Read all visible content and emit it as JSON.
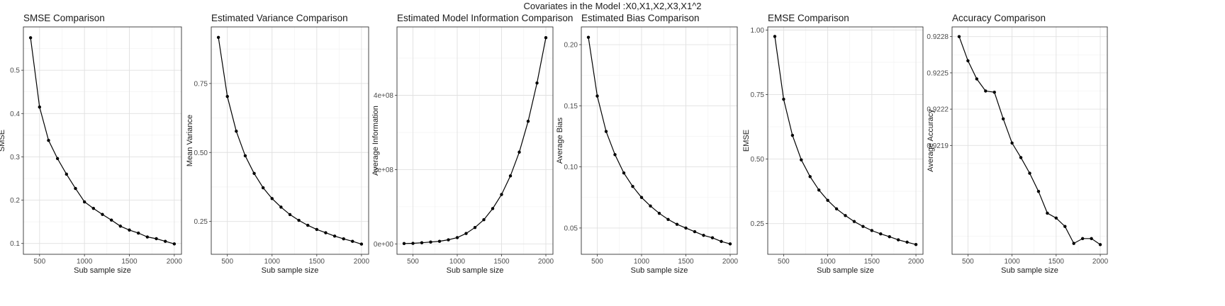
{
  "figure": {
    "title": "Covariates in the Model :X0,X1,X2,X3,X1^2"
  },
  "chart_data": [
    {
      "type": "line",
      "title": "SMSE Comparison",
      "xlabel": "Sub sample size",
      "ylabel": "SMSE",
      "x": [
        400,
        500,
        600,
        700,
        800,
        900,
        1000,
        1100,
        1200,
        1300,
        1400,
        1500,
        1600,
        1700,
        1800,
        1900,
        2000
      ],
      "y": [
        0.575,
        0.415,
        0.338,
        0.296,
        0.26,
        0.227,
        0.196,
        0.181,
        0.167,
        0.154,
        0.14,
        0.131,
        0.124,
        0.115,
        0.111,
        0.105,
        0.099
      ],
      "xticks": [
        500,
        1000,
        1500,
        2000
      ],
      "xtick_labels": [
        "500",
        "1000",
        "1500",
        "2000"
      ],
      "yticks": [
        0.1,
        0.2,
        0.3,
        0.4,
        0.5
      ],
      "ytick_labels": [
        "0.1",
        "0.2",
        "0.3",
        "0.4",
        "0.5"
      ],
      "xlim": [
        320,
        2080
      ],
      "ylim": [
        0.075,
        0.6
      ],
      "grid": true
    },
    {
      "type": "line",
      "title": "Estimated Variance Comparison",
      "xlabel": "Sub sample size",
      "ylabel": "Mean Variance",
      "x": [
        400,
        500,
        600,
        700,
        800,
        900,
        1000,
        1100,
        1200,
        1300,
        1400,
        1500,
        1600,
        1700,
        1800,
        1900,
        2000
      ],
      "y": [
        0.917,
        0.703,
        0.577,
        0.488,
        0.424,
        0.372,
        0.333,
        0.302,
        0.275,
        0.254,
        0.236,
        0.221,
        0.209,
        0.197,
        0.187,
        0.178,
        0.168
      ],
      "xticks": [
        500,
        1000,
        1500,
        2000
      ],
      "xtick_labels": [
        "500",
        "1000",
        "1500",
        "2000"
      ],
      "yticks": [
        0.25,
        0.5,
        0.75
      ],
      "ytick_labels": [
        "0.25",
        "0.50",
        "0.75"
      ],
      "xlim": [
        320,
        2080
      ],
      "ylim": [
        0.131,
        0.955
      ],
      "grid": true
    },
    {
      "type": "line",
      "title": "Estimated Model Information Comparison",
      "xlabel": "Sub sample size",
      "ylabel": "Average Information",
      "x": [
        400,
        500,
        600,
        700,
        800,
        900,
        1000,
        1100,
        1200,
        1300,
        1400,
        1500,
        1600,
        1700,
        1800,
        1900,
        2000
      ],
      "y": [
        1000000,
        1500000,
        3000000,
        5000000,
        7000000,
        11000000,
        17000000,
        28000000,
        44000000,
        65000000,
        95000000,
        133000000,
        183000000,
        247000000,
        330000000,
        433000000,
        555000000
      ],
      "xticks": [
        500,
        1000,
        1500,
        2000
      ],
      "xtick_labels": [
        "500",
        "1000",
        "1500",
        "2000"
      ],
      "yticks": [
        0,
        200000000,
        400000000
      ],
      "ytick_labels": [
        "0e+00",
        "2e+08",
        "4e+08"
      ],
      "xlim": [
        320,
        2080
      ],
      "ylim": [
        -28000000,
        584000000
      ],
      "grid": true
    },
    {
      "type": "line",
      "title": "Estimated Bias Comparison",
      "xlabel": "Sub sample size",
      "ylabel": "Average Bias",
      "x": [
        400,
        500,
        600,
        700,
        800,
        900,
        1000,
        1100,
        1200,
        1300,
        1400,
        1500,
        1600,
        1700,
        1800,
        1900,
        2000
      ],
      "y": [
        0.206,
        0.158,
        0.129,
        0.11,
        0.095,
        0.084,
        0.075,
        0.068,
        0.062,
        0.057,
        0.053,
        0.05,
        0.047,
        0.044,
        0.042,
        0.039,
        0.037
      ],
      "xticks": [
        500,
        1000,
        1500,
        2000
      ],
      "xtick_labels": [
        "500",
        "1000",
        "1500",
        "2000"
      ],
      "yticks": [
        0.05,
        0.1,
        0.15,
        0.2
      ],
      "ytick_labels": [
        "0.05",
        "0.10",
        "0.15",
        "0.20"
      ],
      "xlim": [
        320,
        2080
      ],
      "ylim": [
        0.0285,
        0.2145
      ],
      "grid": true
    },
    {
      "type": "line",
      "title": "EMSE Comparison",
      "xlabel": "Sub sample size",
      "ylabel": "EMSE",
      "x": [
        400,
        500,
        600,
        700,
        800,
        900,
        1000,
        1100,
        1200,
        1300,
        1400,
        1500,
        1600,
        1700,
        1800,
        1900,
        2000
      ],
      "y": [
        0.975,
        0.732,
        0.592,
        0.497,
        0.432,
        0.38,
        0.34,
        0.307,
        0.281,
        0.258,
        0.239,
        0.223,
        0.21,
        0.199,
        0.187,
        0.178,
        0.169
      ],
      "xticks": [
        500,
        1000,
        1500,
        2000
      ],
      "xtick_labels": [
        "500",
        "1000",
        "1500",
        "2000"
      ],
      "yticks": [
        0.25,
        0.5,
        0.75,
        1.0
      ],
      "ytick_labels": [
        "0.25",
        "0.50",
        "0.75",
        "1.00"
      ],
      "xlim": [
        320,
        2080
      ],
      "ylim": [
        0.131,
        1.012
      ],
      "grid": true
    },
    {
      "type": "line",
      "title": "Accuracy Comparison",
      "xlabel": "Sub sample size",
      "ylabel": "Average Accuracy",
      "x": [
        400,
        500,
        600,
        700,
        800,
        900,
        1000,
        1100,
        1200,
        1300,
        1400,
        1500,
        1600,
        1700,
        1800,
        1900,
        2000
      ],
      "y": [
        0.9228,
        0.9226,
        0.92245,
        0.92235,
        0.92234,
        0.92212,
        0.92192,
        0.9218,
        0.92167,
        0.92152,
        0.92134,
        0.9213,
        0.92123,
        0.92109,
        0.92113,
        0.92113,
        0.92108
      ],
      "xticks": [
        500,
        1000,
        1500,
        2000
      ],
      "xtick_labels": [
        "500",
        "1000",
        "1500",
        "2000"
      ],
      "yticks": [
        0.9219,
        0.9222,
        0.9225,
        0.9228
      ],
      "ytick_labels": [
        "0.9219",
        "0.9222",
        "0.9225",
        "0.9228"
      ],
      "xlim": [
        320,
        2080
      ],
      "ylim": [
        0.921,
        0.92288
      ],
      "grid": true
    }
  ]
}
